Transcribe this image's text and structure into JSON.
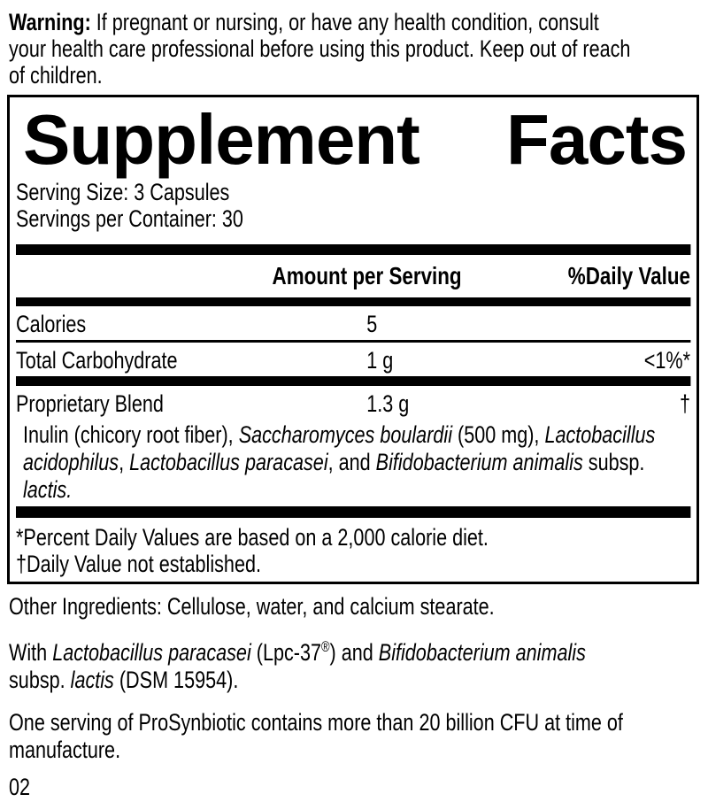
{
  "colors": {
    "text": "#000000",
    "background": "#ffffff",
    "bars": "#000000"
  },
  "warning": {
    "segments": [
      {
        "t": "Warning:",
        "b": true
      },
      {
        "t": " If pregnant or nursing, or have any health condition, consult"
      },
      {
        "br": true
      },
      {
        "t": "your health care professional before using this product. Keep out of reach"
      },
      {
        "br": true
      },
      {
        "t": "of children."
      }
    ]
  },
  "panel": {
    "title_word1": "Supplement",
    "title_word2": "Facts",
    "serving_size": "Serving Size: 3 Capsules",
    "servings_per_container": "Servings per Container: 30",
    "header": {
      "amount": "Amount per Serving",
      "daily_value": "%Daily Value"
    },
    "rows": [
      {
        "label": "Calories",
        "amount": "5",
        "dv": ""
      },
      {
        "label": "Total Carbohydrate",
        "amount": "1 g",
        "dv": "<1%*"
      },
      {
        "label": "Proprietary Blend",
        "amount": "1.3 g",
        "dv": "†"
      }
    ],
    "blend_description": {
      "segments": [
        {
          "t": "Inulin (chicory root fiber), "
        },
        {
          "t": "Saccharomyces boulardii",
          "i": true
        },
        {
          "t": " (500 mg), "
        },
        {
          "t": "Lactobacillus",
          "i": true
        },
        {
          "br": true
        },
        {
          "t": "acidophilus",
          "i": true
        },
        {
          "t": ", "
        },
        {
          "t": "Lactobacillus paracasei",
          "i": true
        },
        {
          "t": ", and "
        },
        {
          "t": "Bifidobacterium animalis",
          "i": true
        },
        {
          "t": " subsp."
        },
        {
          "br": true
        },
        {
          "t": "lactis.",
          "i": true
        }
      ]
    },
    "footnotes": [
      "*Percent Daily Values are based on a 2,000 calorie diet.",
      "†Daily Value not established."
    ]
  },
  "other_ingredients": {
    "segments": [
      {
        "t": "Other Ingredients: Cellulose, water, and calcium stearate."
      }
    ]
  },
  "strains_note": {
    "segments": [
      {
        "t": "With "
      },
      {
        "t": "Lactobacillus paracasei",
        "i": true
      },
      {
        "t": " (Lpc-37"
      },
      {
        "t": "®",
        "sup": true
      },
      {
        "t": ") and "
      },
      {
        "t": "Bifidobacterium animalis",
        "i": true
      },
      {
        "br": true
      },
      {
        "t": "subsp. "
      },
      {
        "t": "lactis",
        "i": true
      },
      {
        "t": " (DSM 15954)."
      }
    ]
  },
  "cfu_note": {
    "segments": [
      {
        "t": "One serving of ProSynbiotic contains more than 20 billion CFU at time of"
      },
      {
        "br": true
      },
      {
        "t": "manufacture."
      }
    ]
  },
  "page_number": "02"
}
